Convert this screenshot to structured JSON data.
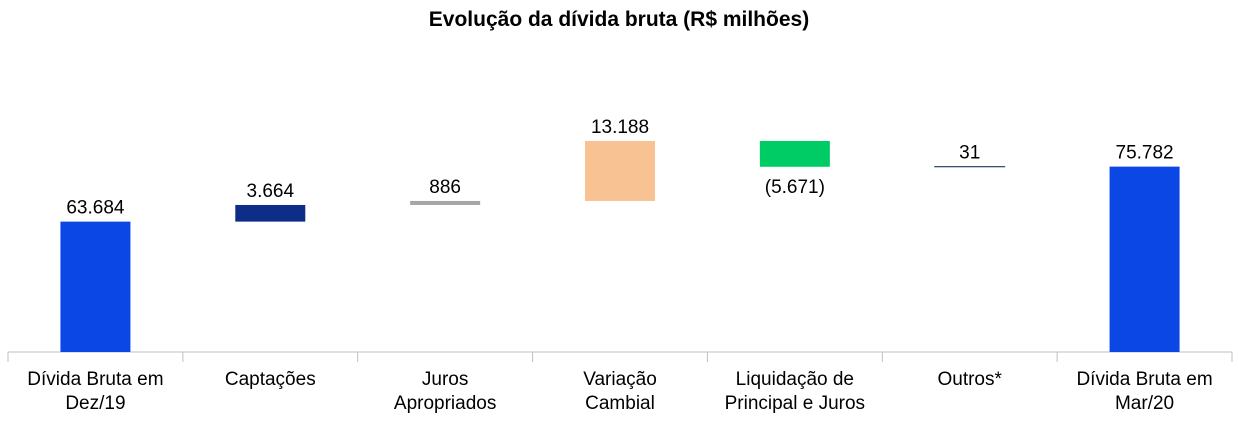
{
  "chart_data": {
    "type": "waterfall",
    "title": "Evolução da dívida bruta (R$ milhões)",
    "categories": [
      "Dívida Bruta em\nDez/19",
      "Captações",
      "Juros\nApropriados",
      "Variação\nCambial",
      "Liquidação de\nPrincipal e Juros",
      "Outros*",
      "Dívida Bruta em\nMar/20"
    ],
    "values": [
      63684,
      3664,
      886,
      13188,
      -5671,
      31,
      75782
    ],
    "value_labels": [
      "63.684",
      "3.664",
      "886",
      "13.188",
      "(5.671)",
      "31",
      "75.782"
    ],
    "is_total": [
      true,
      false,
      false,
      false,
      false,
      false,
      true
    ],
    "colors": [
      "#0b47e4",
      "#0c2e87",
      "#a6a6a6",
      "#f8c292",
      "#00cc66",
      "#1f3864",
      "#0b47e4"
    ],
    "ylim": [
      35000,
      90000
    ]
  }
}
